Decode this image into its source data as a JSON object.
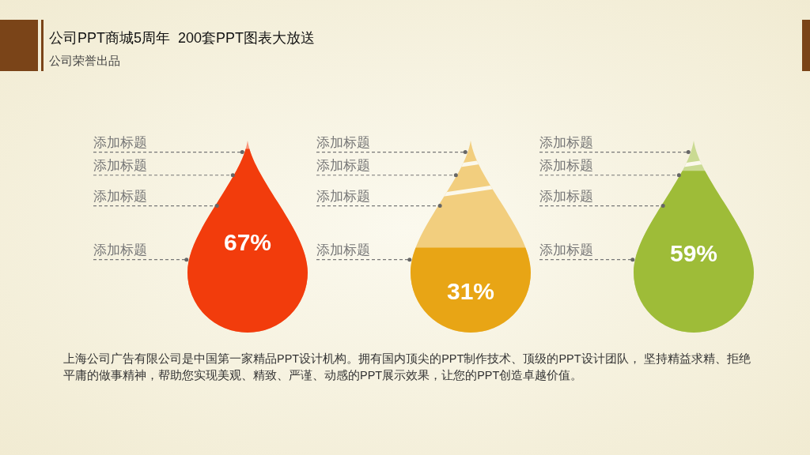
{
  "chart_data": {
    "type": "bar",
    "title": "公司PPT商城5周年  200套PPT图表大放送",
    "subtitle": "公司荣誉出品",
    "categories": [
      null,
      null,
      null
    ],
    "values": [
      67,
      31,
      59
    ],
    "colors": [
      "#f23c0c",
      "#e8a515",
      "#9ebc38"
    ],
    "tick_labels": false,
    "data_labels": true,
    "value_labels": [
      "67%",
      "31%",
      "59%"
    ],
    "annotations": [
      "添加标题",
      "添加标题",
      "添加标题",
      "添加标题",
      "添加标题",
      "添加标题",
      "添加标题",
      "添加标题",
      "添加标题",
      "添加标题",
      "添加标题",
      "添加标题",
      "上海公司广告有限公司是中国第一家精品PPT设计机构。拥有国内顶尖的PPT制作技术、顶级的PPT设计团队， 坚持精益求精、拒绝平庸的做事精神，帮助您实现美观、精致、严谨、动感的PPT展示效果，让您的PPT创造卓越价值。"
    ]
  }
}
